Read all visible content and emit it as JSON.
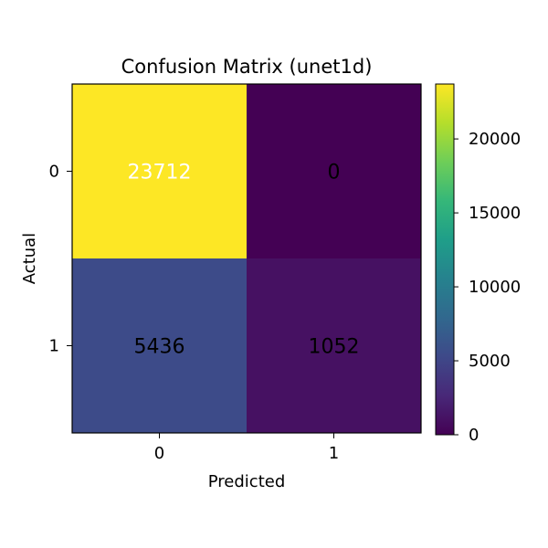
{
  "chart_data": {
    "type": "heatmap",
    "title": "Confusion Matrix (unet1d)",
    "xlabel": "Predicted",
    "ylabel": "Actual",
    "x_categories": [
      "0",
      "1"
    ],
    "y_categories": [
      "0",
      "1"
    ],
    "values": [
      [
        23712,
        0
      ],
      [
        5436,
        1052
      ]
    ],
    "cell_labels": [
      [
        "23712",
        "0"
      ],
      [
        "5436",
        "1052"
      ]
    ],
    "colormap": "viridis",
    "colorbar": {
      "range": [
        0,
        23712
      ],
      "ticks": [
        0,
        5000,
        10000,
        15000,
        20000
      ],
      "tick_labels": [
        "0",
        "5000",
        "10000",
        "15000",
        "20000"
      ]
    },
    "colors": {
      "viridis_stops": [
        "#440154",
        "#482878",
        "#3e4989",
        "#31688e",
        "#26828e",
        "#1f9e89",
        "#35b779",
        "#6ece58",
        "#b5de2b",
        "#fde725"
      ]
    }
  }
}
